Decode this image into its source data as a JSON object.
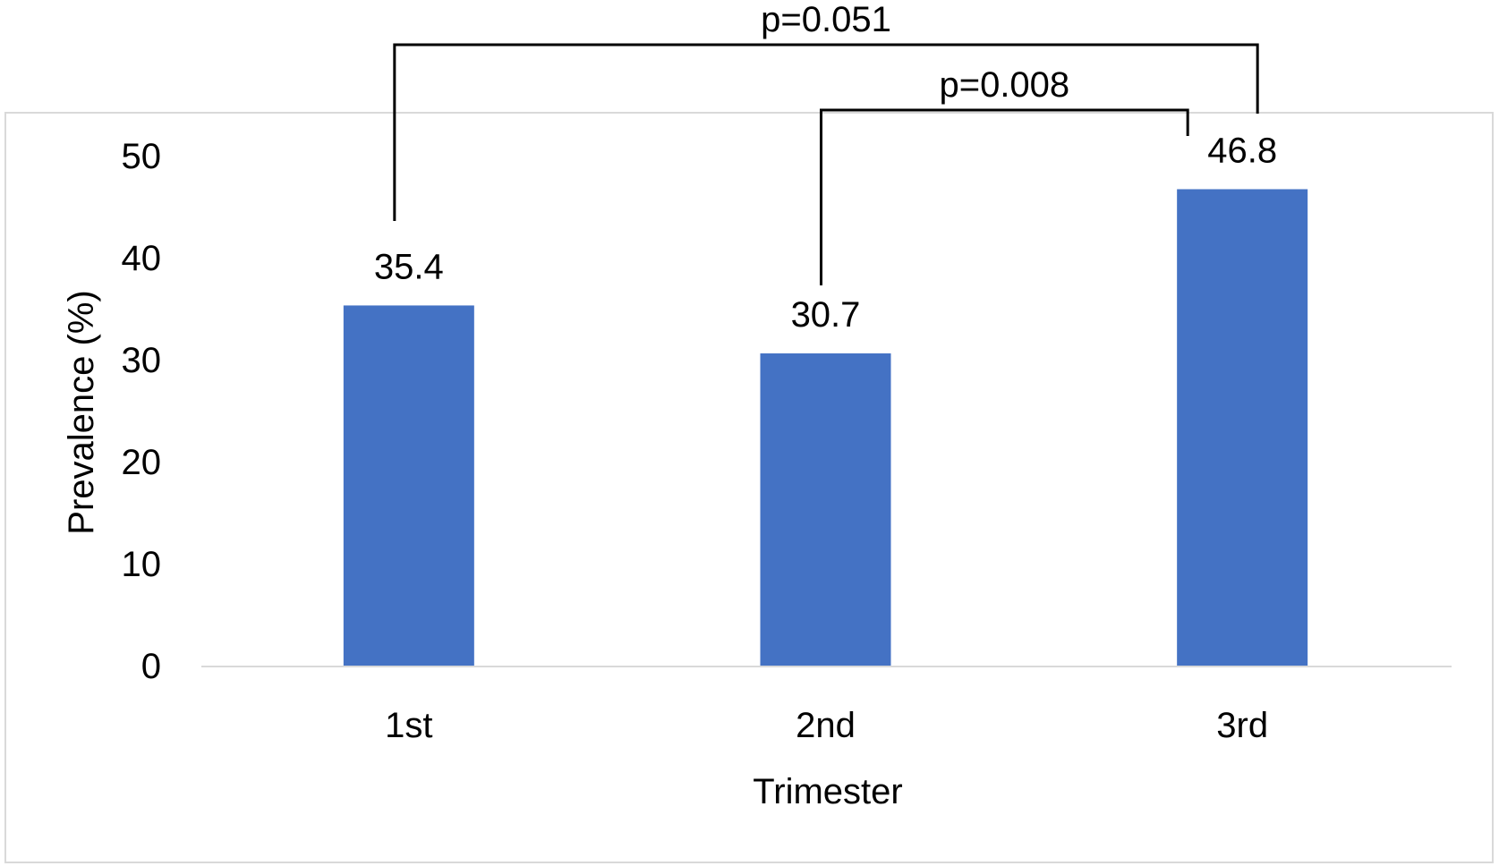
{
  "chart_data": {
    "type": "bar",
    "categories": [
      "1st",
      "2nd",
      "3rd"
    ],
    "values": [
      35.4,
      30.7,
      46.8
    ],
    "data_labels": [
      "35.4",
      "30.7",
      "46.8"
    ],
    "xlabel": "Trimester",
    "ylabel": "Prevalence (%)",
    "ylim": [
      0,
      50
    ],
    "yticks": [
      0,
      10,
      20,
      30,
      40,
      50
    ],
    "ytick_labels": [
      "0",
      "10",
      "20",
      "30",
      "40",
      "50"
    ],
    "grid": false,
    "bar_color": "#4472C4",
    "annotations": [
      {
        "type": "significance-bracket",
        "from": "1st",
        "to": "3rd",
        "label": "p=0.051"
      },
      {
        "type": "significance-bracket",
        "from": "2nd",
        "to": "3rd",
        "label": "p=0.008"
      }
    ]
  }
}
